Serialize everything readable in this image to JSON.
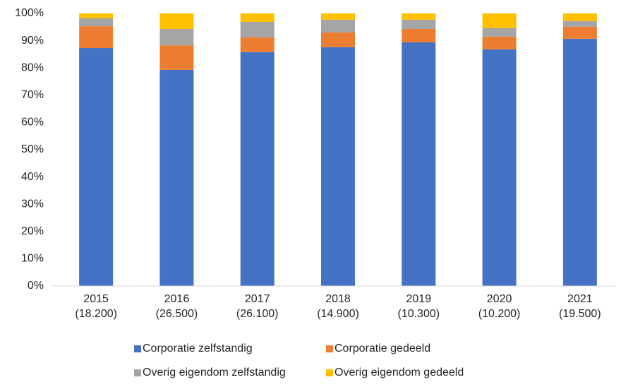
{
  "chart_data": {
    "type": "stacked_bar",
    "categories": [
      [
        "2015",
        "(18.200)"
      ],
      [
        "2016",
        "(26.500)"
      ],
      [
        "2017",
        "(26.100)"
      ],
      [
        "2018",
        "(14.900)"
      ],
      [
        "2019",
        "(10.300)"
      ],
      [
        "2020",
        "(10.200)"
      ],
      [
        "2021",
        "(19.500)"
      ]
    ],
    "series": [
      {
        "name": "Corporatie zelfstandig",
        "color": "#4472c4",
        "values": [
          87.3,
          79.3,
          85.8,
          87.6,
          89.4,
          86.8,
          90.7
        ]
      },
      {
        "name": "Corporatie gedeeld",
        "color": "#ed7d31",
        "values": [
          8.0,
          9.0,
          5.4,
          5.4,
          4.9,
          4.7,
          4.4
        ]
      },
      {
        "name": "Overig eigendom zelfstandig",
        "color": "#a5a5a5",
        "values": [
          2.9,
          6.0,
          5.7,
          4.7,
          3.4,
          3.1,
          2.1
        ]
      },
      {
        "name": "Overig eigendom gedeeld",
        "color": "#ffc000",
        "values": [
          1.8,
          5.7,
          3.1,
          2.3,
          2.3,
          5.4,
          2.8
        ]
      }
    ],
    "ylim": [
      0,
      100
    ],
    "yticks": [
      {
        "value": 0,
        "label": "0%"
      },
      {
        "value": 10,
        "label": "10%"
      },
      {
        "value": 20,
        "label": "20%"
      },
      {
        "value": 30,
        "label": "30%"
      },
      {
        "value": 40,
        "label": "40%"
      },
      {
        "value": 50,
        "label": "50%"
      },
      {
        "value": 60,
        "label": "60%"
      },
      {
        "value": 70,
        "label": "70%"
      },
      {
        "value": 80,
        "label": "80%"
      },
      {
        "value": 90,
        "label": "90%"
      },
      {
        "value": 100,
        "label": "100%"
      }
    ],
    "grid": false,
    "legend": "bottom"
  }
}
